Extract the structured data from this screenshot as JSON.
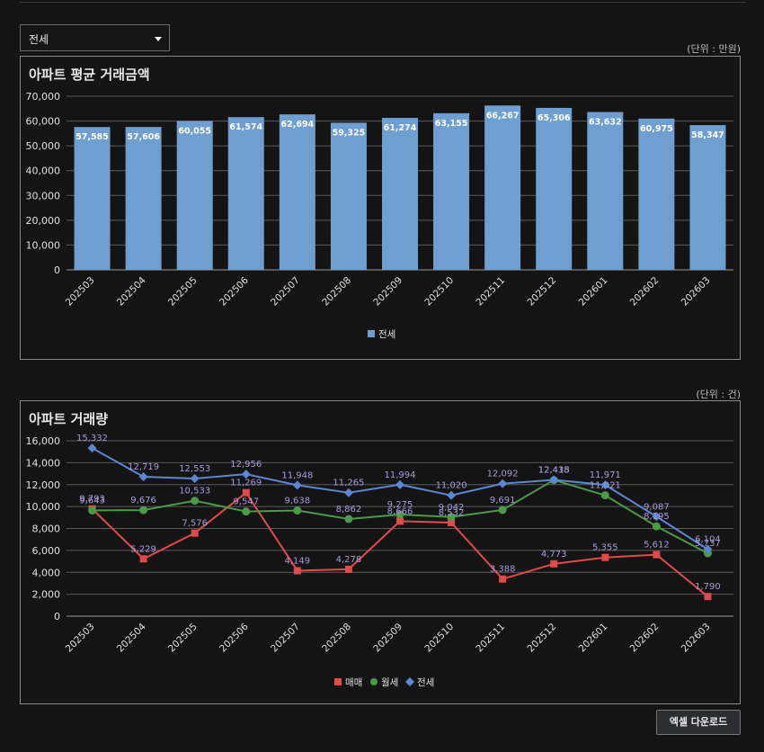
{
  "filter": {
    "selected": "전세"
  },
  "chart1_unit": "(단위 : 만원)",
  "chart2_unit": "(단위 : 건)",
  "download_label": "엑셀 다운로드",
  "colors": {
    "bar": "#6e9fd0",
    "maemae": "#e04a4a",
    "wolse": "#4a9a4a",
    "jeonse": "#5b86d1",
    "label_purple": "#a79bdc"
  },
  "chart_data": [
    {
      "type": "bar",
      "title": "아파트 평균 거래금액",
      "categories": [
        "202503",
        "202504",
        "202505",
        "202506",
        "202507",
        "202508",
        "202509",
        "202510",
        "202511",
        "202512",
        "202601",
        "202602",
        "202603"
      ],
      "series": [
        {
          "name": "전세",
          "values": [
            57585,
            57606,
            60055,
            61574,
            62694,
            59325,
            61274,
            63155,
            66267,
            65306,
            63632,
            60975,
            58347
          ]
        }
      ],
      "ylim": [
        0,
        70000
      ],
      "yticks": [
        0,
        10000,
        20000,
        30000,
        40000,
        50000,
        60000,
        70000
      ],
      "legend": "bottom-center"
    },
    {
      "type": "line",
      "title": "아파트 거래량",
      "categories": [
        "202503",
        "202504",
        "202505",
        "202506",
        "202507",
        "202508",
        "202509",
        "202510",
        "202511",
        "202512",
        "202601",
        "202602",
        "202603"
      ],
      "series": [
        {
          "name": "매매",
          "values": [
            9793,
            5229,
            7576,
            11269,
            4149,
            4278,
            8666,
            8532,
            3388,
            4773,
            5355,
            5612,
            1790
          ]
        },
        {
          "name": "월세",
          "values": [
            9643,
            9676,
            10533,
            9547,
            9638,
            8862,
            9275,
            9042,
            9691,
            12418,
            11021,
            8195,
            5737
          ]
        },
        {
          "name": "전세",
          "values": [
            15332,
            12719,
            12553,
            12956,
            11948,
            11265,
            11994,
            11020,
            12092,
            12435,
            11971,
            9087,
            6104
          ]
        }
      ],
      "ylim": [
        0,
        16000
      ],
      "yticks": [
        0,
        2000,
        4000,
        6000,
        8000,
        10000,
        12000,
        14000,
        16000
      ],
      "legend": "bottom-center"
    }
  ]
}
